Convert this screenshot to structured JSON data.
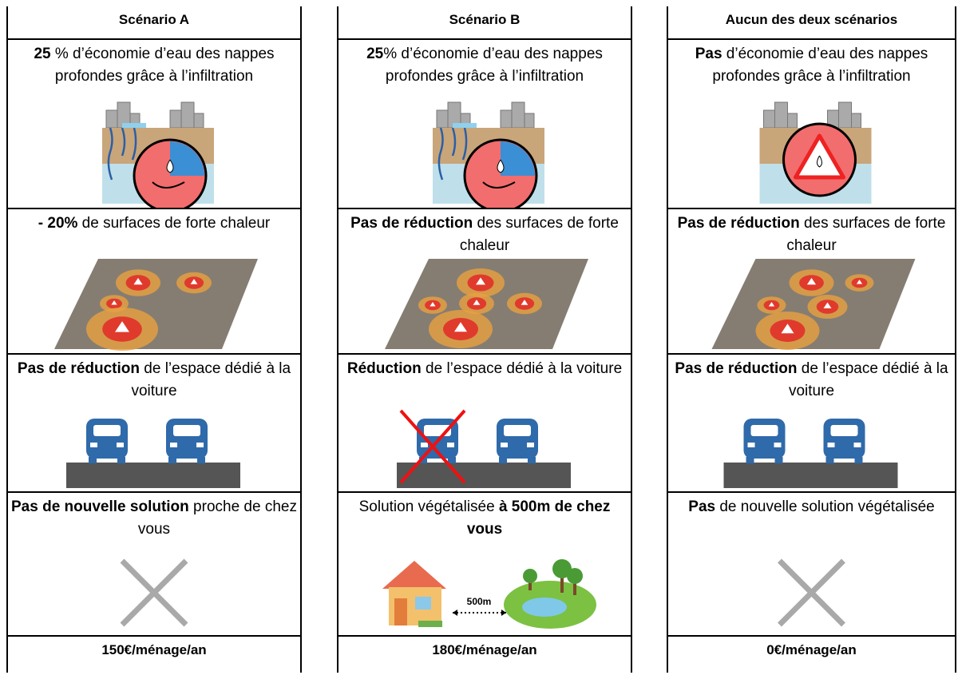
{
  "columns": [
    {
      "title": "Scénario A",
      "cells": [
        [
          {
            "text": "25",
            "bold": true
          },
          {
            "text": " % d’économie d’eau des nappes profondes grâce à l’infiltration"
          }
        ],
        [
          {
            "text": "- 20%",
            "bold": true
          },
          {
            "text": " de surfaces de forte chaleur"
          }
        ],
        [
          {
            "text": "Pas de réduction",
            "bold": true
          },
          {
            "text": " de l’espace dédié à la voiture"
          }
        ],
        [
          {
            "text": "Pas de nouvelle solution",
            "bold": true
          },
          {
            "text": " proche de chez vous"
          }
        ]
      ],
      "cost": "150€/ménage/an"
    },
    {
      "title": "Scénario B",
      "cells": [
        [
          {
            "text": "25",
            "bold": true
          },
          {
            "text": "% d’économie d’eau des nappes profondes grâce à l’infiltration"
          }
        ],
        [
          {
            "text": "Pas de réduction",
            "bold": true
          },
          {
            "text": " des surfaces de forte chaleur"
          }
        ],
        [
          {
            "text": "Réduction",
            "bold": true
          },
          {
            "text": " de l’espace dédié à la voiture"
          }
        ],
        [
          {
            "text": "Solution végétalisée "
          },
          {
            "text": "à 500m de chez vous",
            "bold": true
          }
        ]
      ],
      "distance_label": "500m",
      "cost": "180€/ménage/an"
    },
    {
      "title": "Aucun des deux scénarios",
      "cells": [
        [
          {
            "text": "Pas",
            "bold": true
          },
          {
            "text": " d’économie d’eau des nappes profondes grâce à l’infiltration"
          }
        ],
        [
          {
            "text": "Pas de réduction",
            "bold": true
          },
          {
            "text": " des surfaces de forte chaleur"
          }
        ],
        [
          {
            "text": "Pas de réduction",
            "bold": true
          },
          {
            "text": " de l’espace dédié à la voiture"
          }
        ],
        [
          {
            "text": "Pas",
            "bold": true
          },
          {
            "text": " de nouvelle solution végétalisée"
          }
        ]
      ],
      "cost": "0€/ménage/an"
    }
  ]
}
